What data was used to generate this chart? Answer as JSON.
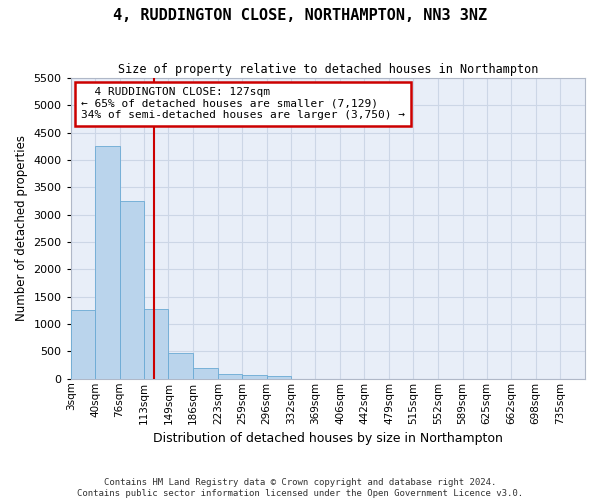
{
  "title": "4, RUDDINGTON CLOSE, NORTHAMPTON, NN3 3NZ",
  "subtitle": "Size of property relative to detached houses in Northampton",
  "xlabel": "Distribution of detached houses by size in Northampton",
  "ylabel": "Number of detached properties",
  "footer_line1": "Contains HM Land Registry data © Crown copyright and database right 2024.",
  "footer_line2": "Contains public sector information licensed under the Open Government Licence v3.0.",
  "annotation_line1": "4 RUDDINGTON CLOSE: 127sqm",
  "annotation_line2": "← 65% of detached houses are smaller (7,129)",
  "annotation_line3": "34% of semi-detached houses are larger (3,750) →",
  "bar_color": "#bad4ec",
  "bar_edge_color": "#6aaad4",
  "vline_color": "#cc0000",
  "annotation_box_edgecolor": "#cc0000",
  "grid_color": "#ccd6e6",
  "background_color": "#e8eef8",
  "categories": [
    "3sqm",
    "40sqm",
    "76sqm",
    "113sqm",
    "149sqm",
    "186sqm",
    "223sqm",
    "259sqm",
    "296sqm",
    "332sqm",
    "369sqm",
    "406sqm",
    "442sqm",
    "479sqm",
    "515sqm",
    "552sqm",
    "589sqm",
    "625sqm",
    "662sqm",
    "698sqm",
    "735sqm"
  ],
  "bin_edges": [
    3,
    40,
    76,
    113,
    149,
    186,
    223,
    259,
    296,
    332,
    369,
    406,
    442,
    479,
    515,
    552,
    589,
    625,
    662,
    698,
    735
  ],
  "values": [
    1250,
    4250,
    3250,
    1280,
    480,
    200,
    90,
    60,
    55,
    0,
    0,
    0,
    0,
    0,
    0,
    0,
    0,
    0,
    0,
    0
  ],
  "vline_x": 127,
  "ylim_min": 0,
  "ylim_max": 5500,
  "yticks": [
    0,
    500,
    1000,
    1500,
    2000,
    2500,
    3000,
    3500,
    4000,
    4500,
    5000,
    5500
  ]
}
